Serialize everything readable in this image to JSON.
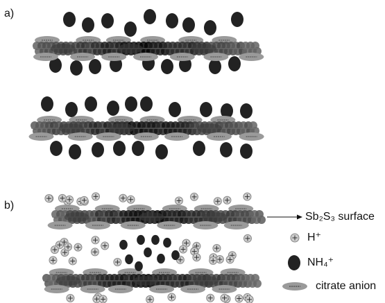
{
  "panels": [
    {
      "label": "a)"
    },
    {
      "label": "b)"
    }
  ],
  "legend": [
    {
      "label": "Sb₂S₃ surface"
    },
    {
      "label": "H⁺"
    },
    {
      "label": "NH₄⁺"
    },
    {
      "label": "citrate anion"
    }
  ]
}
